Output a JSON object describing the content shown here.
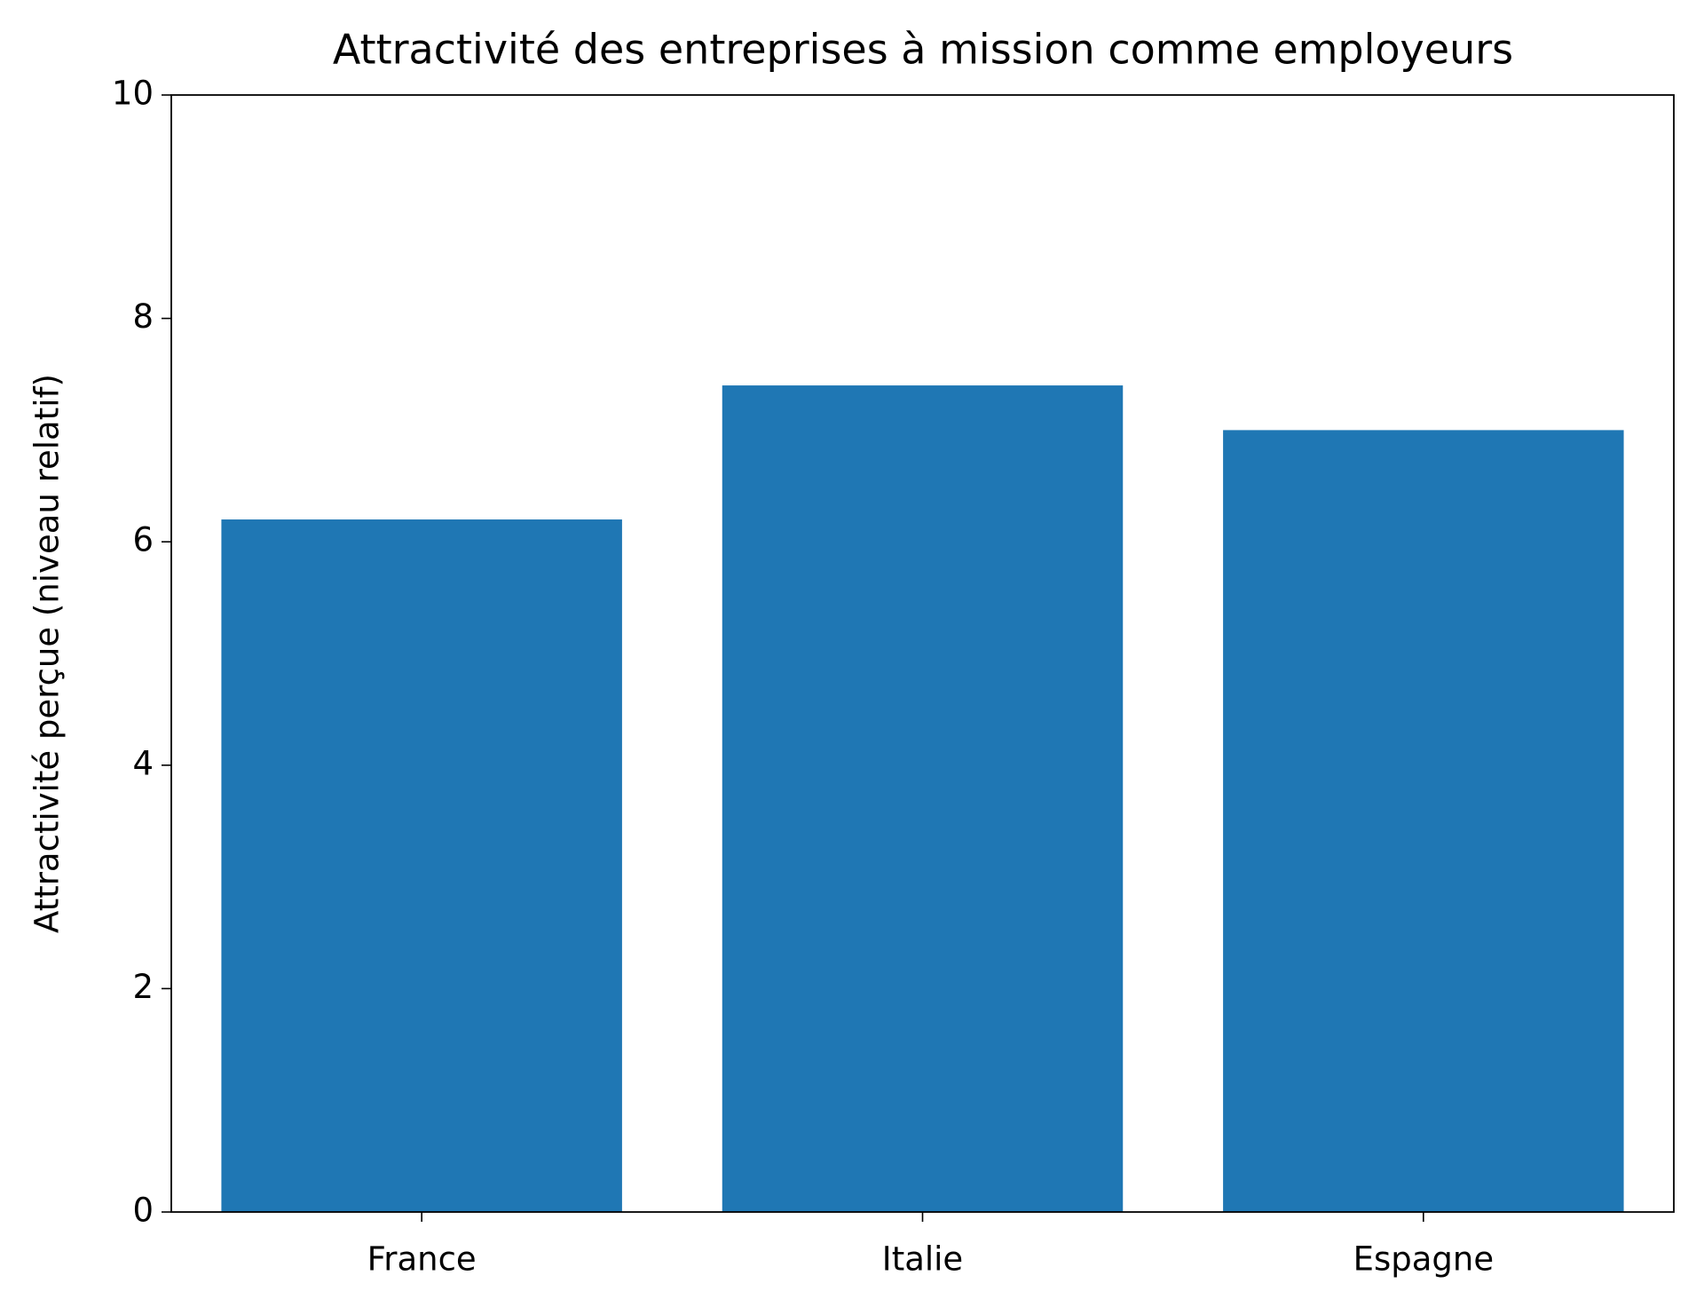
{
  "chart_data": {
    "type": "bar",
    "title": "Attractivité des entreprises à mission comme employeurs",
    "y_label": "Attractivité perçue (niveau relatif)",
    "categories": [
      "France",
      "Italie",
      "Espagne"
    ],
    "values": [
      6.2,
      7.4,
      7.0
    ],
    "color": "#1f77b4",
    "ylim": [
      0,
      10
    ],
    "yticks": [
      0,
      2,
      4,
      6,
      8,
      10
    ],
    "grid": false
  }
}
